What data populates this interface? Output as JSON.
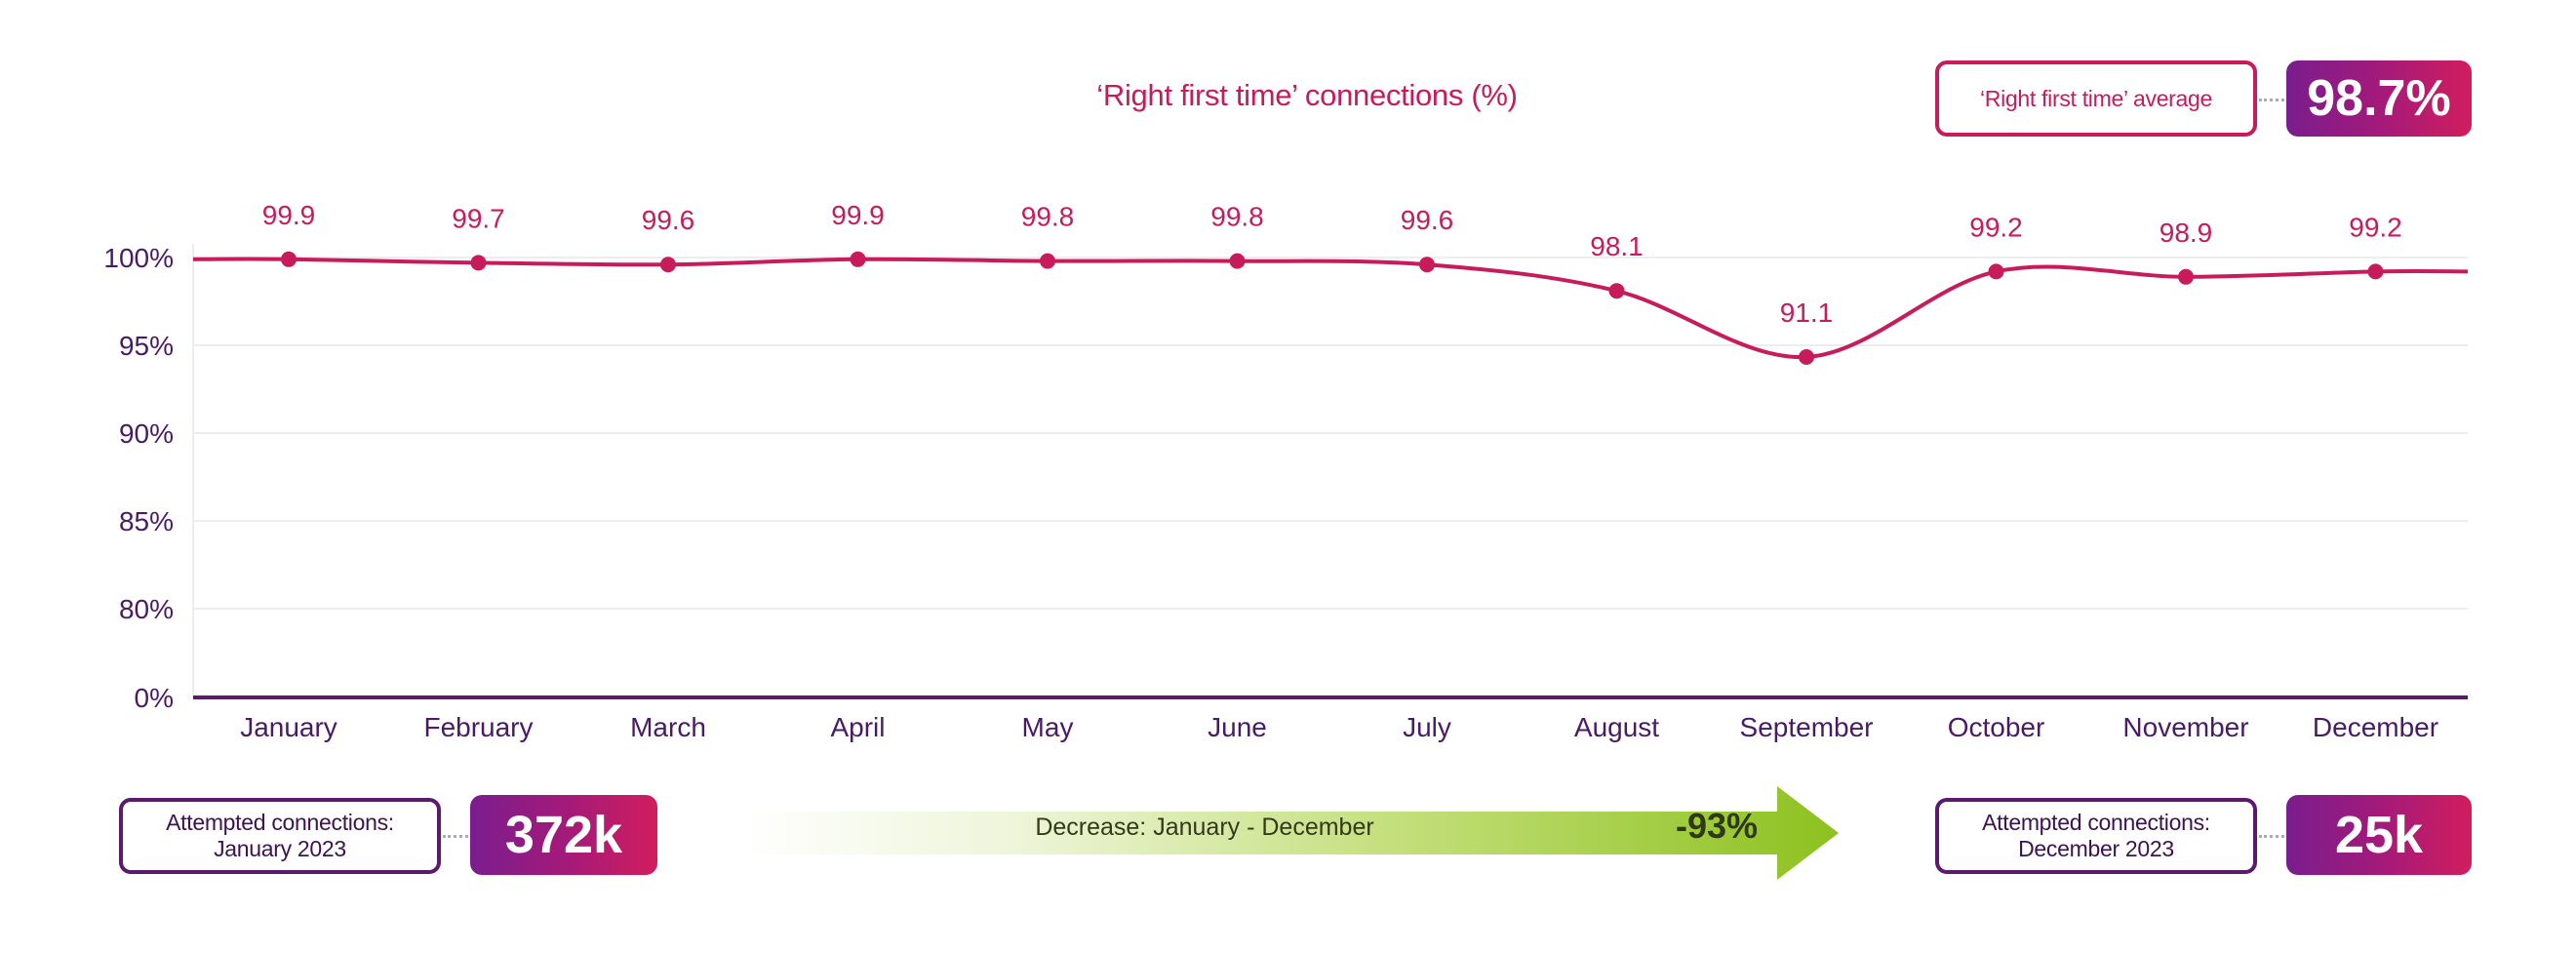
{
  "chart_data": {
    "type": "line",
    "title": "‘Right first time’ connections (%)",
    "categories": [
      "January",
      "February",
      "March",
      "April",
      "May",
      "June",
      "July",
      "August",
      "September",
      "October",
      "November",
      "December"
    ],
    "values": [
      99.9,
      99.7,
      99.6,
      99.9,
      99.8,
      99.8,
      99.6,
      98.1,
      91.1,
      99.2,
      98.9,
      99.2
    ],
    "y_ticks": [
      "100%",
      "95%",
      "90%",
      "85%",
      "80%",
      "0%"
    ],
    "y_axis_note": "Broken axis: 0% then 80% to 100%",
    "ylim": [
      0,
      100
    ],
    "colors": {
      "line": "#c81b5b",
      "axis": "#5b1a6e",
      "text_axis": "#4a1a66",
      "grid": "#ececf2"
    }
  },
  "average": {
    "label": "‘Right first time’ average",
    "value": "98.7%"
  },
  "january": {
    "label_line1": "Attempted connections:",
    "label_line2": "January 2023",
    "value": "372k"
  },
  "december": {
    "label_line1": "Attempted connections:",
    "label_line2": "December 2023",
    "value": "25k"
  },
  "decrease": {
    "label": "Decrease: January - December",
    "value": "-93%",
    "color": "#8dc11f"
  }
}
